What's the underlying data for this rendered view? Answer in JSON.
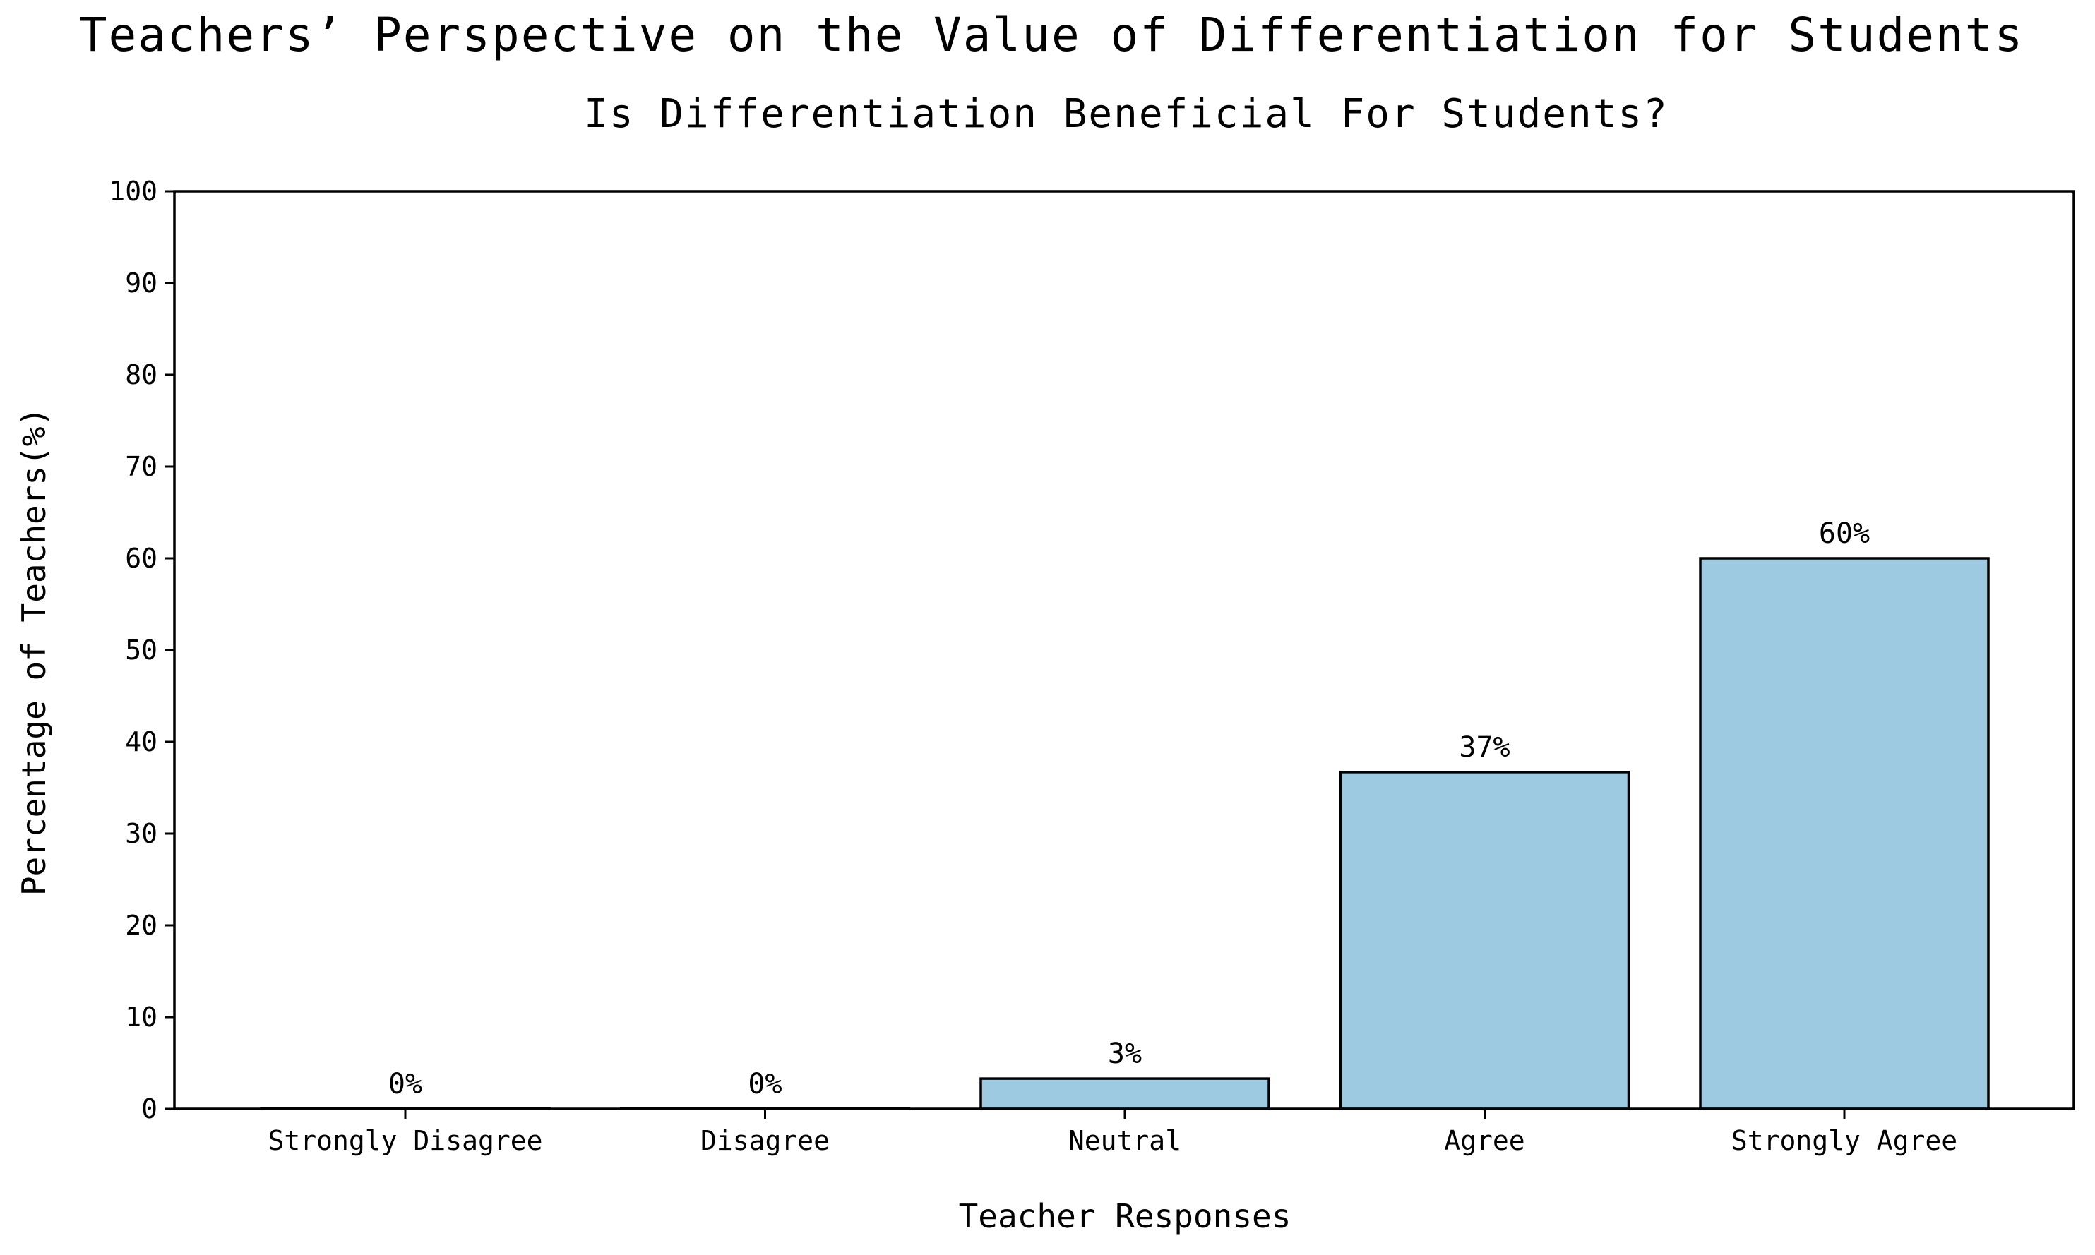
{
  "chart_data": {
    "type": "bar",
    "title": "Teachers’ Perspective on the Value of Differentiation for Students",
    "subtitle": "Is Differentiation Beneficial For Students?",
    "xlabel": "Teacher Responses",
    "ylabel": "Percentage of Teachers(%)",
    "categories": [
      "Strongly Disagree",
      "Disagree",
      "Neutral",
      "Agree",
      "Strongly Agree"
    ],
    "values": [
      0,
      0,
      3.3,
      36.7,
      60
    ],
    "data_labels": [
      "0%",
      "0%",
      "3%",
      "37%",
      "60%"
    ],
    "ylim": [
      0,
      100
    ],
    "yticks": [
      "0",
      "10",
      "20",
      "30",
      "40",
      "50",
      "60",
      "70",
      "80",
      "90",
      "100"
    ],
    "grid": false,
    "legend": "none",
    "bar_color": "#9ecae1",
    "edge_color": "#000000"
  }
}
